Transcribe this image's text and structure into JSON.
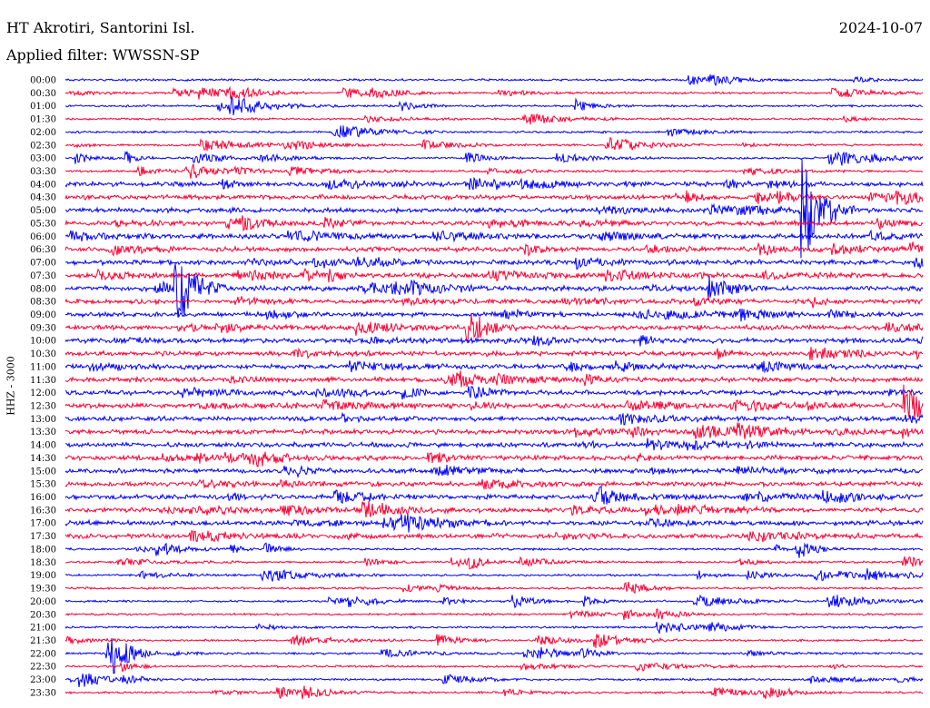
{
  "header": {
    "station": "HT Akrotiri, Santorini Isl.",
    "date": "2024-10-07",
    "filter": "Applied filter: WWSSN-SP"
  },
  "chart_data": {
    "type": "line",
    "title": "HT Akrotiri, Santorini Isl.",
    "ylabel": "HHZ - 3000",
    "trace_colors": [
      "#0000ff",
      "#ff0033"
    ],
    "rows": [
      "00:00",
      "00:30",
      "01:00",
      "01:30",
      "02:00",
      "02:30",
      "03:00",
      "03:30",
      "04:00",
      "04:30",
      "05:00",
      "05:30",
      "06:00",
      "06:30",
      "07:00",
      "07:30",
      "08:00",
      "08:30",
      "09:00",
      "09:30",
      "10:00",
      "10:30",
      "11:00",
      "11:30",
      "12:00",
      "12:30",
      "13:00",
      "13:30",
      "14:00",
      "14:30",
      "15:00",
      "15:30",
      "16:00",
      "16:30",
      "17:00",
      "17:30",
      "18:00",
      "18:30",
      "19:00",
      "19:30",
      "20:00",
      "20:30",
      "21:00",
      "21:30",
      "22:00",
      "22:30",
      "23:00",
      "23:30"
    ],
    "events": [
      {
        "row": "05:00",
        "pos": 0.86,
        "amp": 1.0
      },
      {
        "row": "08:00",
        "pos": 0.13,
        "amp": 0.7
      },
      {
        "row": "22:00",
        "pos": 0.05,
        "amp": 0.5
      },
      {
        "row": "12:30",
        "pos": 0.98,
        "amp": 0.4
      },
      {
        "row": "09:30",
        "pos": 0.47,
        "amp": 0.3
      }
    ]
  }
}
